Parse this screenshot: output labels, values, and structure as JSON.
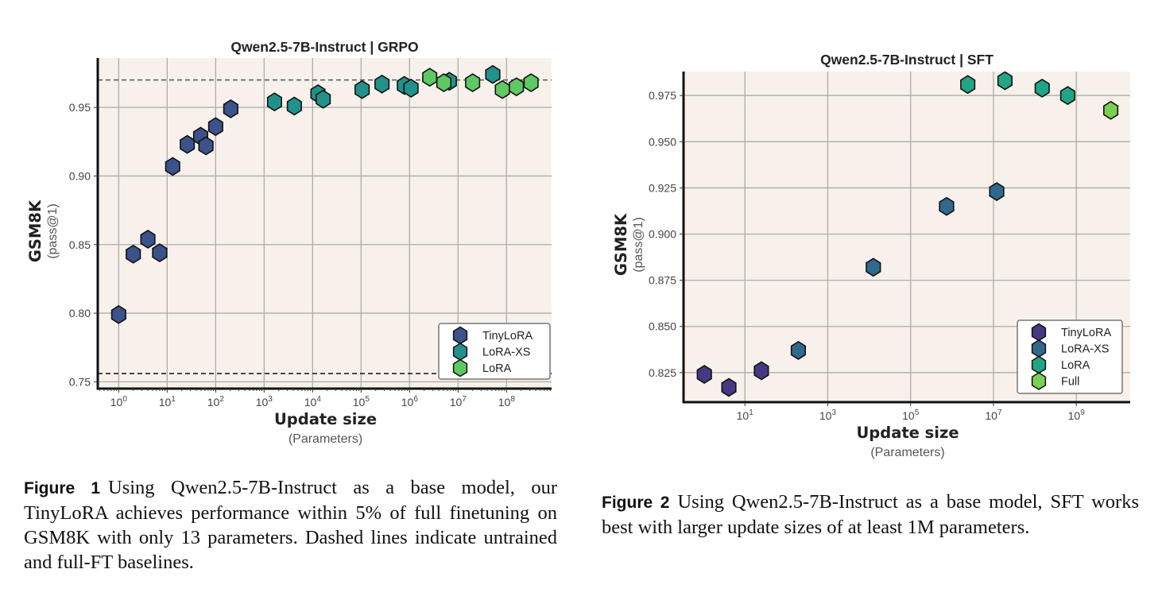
{
  "chart_data": [
    {
      "type": "scatter",
      "title": "Qwen2.5-7B-Instruct  |  GRPO",
      "xlabel": "Update size",
      "xlabel_sub": "(Parameters)",
      "ylabel": "GSM8K",
      "ylabel_sub": "(pass@1)",
      "xscale": "log",
      "xlim": [
        0.37,
        850000000
      ],
      "ylim": [
        0.745,
        0.986
      ],
      "xticks": [
        1,
        10,
        100,
        1000,
        10000,
        100000,
        1000000,
        10000000,
        100000000
      ],
      "xtick_labels": [
        "10^0",
        "10^1",
        "10^2",
        "10^3",
        "10^4",
        "10^5",
        "10^6",
        "10^7",
        "10^8"
      ],
      "yticks": [
        0.75,
        0.8,
        0.85,
        0.9,
        0.95
      ],
      "ytick_labels": [
        "0.75",
        "0.80",
        "0.85",
        "0.90",
        "0.95"
      ],
      "grid": true,
      "legend_position": "lower-right",
      "baselines": [
        {
          "name": "full-FT baseline",
          "y": 0.97,
          "color": "#555555"
        },
        {
          "name": "untrained baseline",
          "y": 0.756,
          "color": "#111111"
        }
      ],
      "series": [
        {
          "name": "TinyLoRA",
          "color": "#3b528b",
          "x": [
            1,
            2,
            4,
            7,
            13,
            26,
            49,
            63,
            100,
            205
          ],
          "y": [
            0.799,
            0.843,
            0.854,
            0.844,
            0.907,
            0.923,
            0.929,
            0.922,
            0.936,
            0.949
          ]
        },
        {
          "name": "LoRA-XS",
          "color": "#21918c",
          "x": [
            1640,
            4200,
            12900,
            16500,
            105000,
            270000,
            780000,
            1070000,
            6600000,
            52000000
          ],
          "y": [
            0.954,
            0.951,
            0.96,
            0.956,
            0.963,
            0.967,
            0.966,
            0.964,
            0.969,
            0.974
          ]
        },
        {
          "name": "LoRA",
          "color": "#5ec962",
          "x": [
            2600000,
            5100000,
            20000000,
            82000000,
            160000000,
            320000000
          ],
          "y": [
            0.972,
            0.968,
            0.968,
            0.963,
            0.965,
            0.968
          ]
        }
      ]
    },
    {
      "type": "scatter",
      "title": "Qwen2.5-7B-Instruct  |  SFT",
      "xlabel": "Update size",
      "xlabel_sub": "(Parameters)",
      "ylabel": "GSM8K",
      "ylabel_sub": "(pass@1)",
      "xscale": "log",
      "xlim": [
        0.33,
        20000000000
      ],
      "ylim": [
        0.809,
        0.988
      ],
      "xticks": [
        10,
        1000,
        100000,
        10000000,
        1000000000
      ],
      "xtick_labels": [
        "10^1",
        "10^3",
        "10^5",
        "10^7",
        "10^9"
      ],
      "yticks": [
        0.825,
        0.85,
        0.875,
        0.9,
        0.925,
        0.95,
        0.975
      ],
      "ytick_labels": [
        "0.825",
        "0.850",
        "0.875",
        "0.900",
        "0.925",
        "0.950",
        "0.975"
      ],
      "grid": true,
      "legend_position": "lower-right",
      "series": [
        {
          "name": "TinyLoRA",
          "color": "#443983",
          "x": [
            1.05,
            4.1,
            25
          ],
          "y": [
            0.824,
            0.817,
            0.826
          ]
        },
        {
          "name": "LoRA-XS",
          "color": "#31688e",
          "x": [
            195,
            12600,
            740000,
            12000000
          ],
          "y": [
            0.837,
            0.882,
            0.915,
            0.923
          ]
        },
        {
          "name": "LoRA",
          "color": "#21a585",
          "x": [
            2400000,
            19000000,
            150000000,
            620000000
          ],
          "y": [
            0.981,
            0.983,
            0.979,
            0.975
          ]
        },
        {
          "name": "Full",
          "color": "#7ad151",
          "x": [
            6800000000
          ],
          "y": [
            0.967
          ]
        }
      ]
    }
  ],
  "captions": [
    {
      "label": "Figure 1",
      "text": "Using Qwen2.5-7B-Instruct as a base model, our TinyLoRA achieves performance within 5% of full finetuning on GSM8K with only 13 parameters. Dashed lines indicate untrained and full-FT baselines."
    },
    {
      "label": "Figure 2",
      "text": "Using Qwen2.5-7B-Instruct as a base model, SFT works best with larger update sizes of at least 1M parameters."
    }
  ],
  "colors": {
    "plot_background": "#f8f1eb",
    "grid": "#b0aba6",
    "axis": "#111111"
  }
}
